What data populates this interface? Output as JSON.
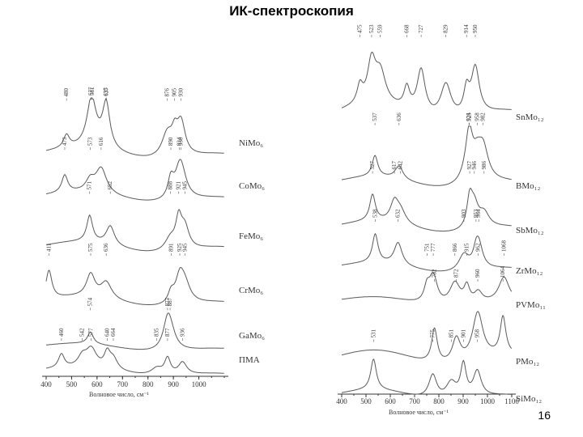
{
  "slide": {
    "title": "ИК-спектроскопия",
    "page_number": "16"
  },
  "chart_data": [
    {
      "type": "line",
      "xlabel": "Волновое число, см⁻¹",
      "xlim": [
        400,
        1100
      ],
      "x_ticks": [
        "400",
        "500",
        "600",
        "700",
        "800",
        "900",
        "1000"
      ],
      "series": [
        {
          "name": "NiMo₆",
          "peaks": [
            480,
            577,
            581,
            637,
            635,
            876,
            905,
            930
          ]
        },
        {
          "name": "CoMo₆",
          "peaks": [
            473,
            573,
            616,
            890,
            924,
            930
          ]
        },
        {
          "name": "FeMo₆",
          "peaks": [
            571,
            652,
            888,
            921,
            945
          ]
        },
        {
          "name": "CrMo₆",
          "peaks": [
            411,
            575,
            636,
            891,
            925,
            945
          ]
        },
        {
          "name": "GaMo₆",
          "peaks": [
            574,
            877,
            887
          ]
        },
        {
          "name": "ПМА",
          "peaks": [
            460,
            542,
            577,
            640,
            664,
            835,
            877,
            936
          ]
        }
      ]
    },
    {
      "type": "line",
      "xlabel": "Волновое число, см⁻¹",
      "xlim": [
        400,
        1100
      ],
      "x_ticks": [
        "400",
        "500",
        "600",
        "700",
        "800",
        "900",
        "1000",
        "1100"
      ],
      "series": [
        {
          "name": "SnMo₁₂",
          "peaks": [
            475,
            523,
            559,
            668,
            727,
            829,
            914,
            950
          ]
        },
        {
          "name": "BMo₁₂",
          "peaks": [
            537,
            636,
            924,
            925,
            958,
            982
          ]
        },
        {
          "name": "SbMo₁₂",
          "peaks": [
            527,
            617,
            642,
            927,
            946,
            986
          ]
        },
        {
          "name": "ZrMo₁₂",
          "peaks": [
            538,
            632,
            903,
            953,
            964
          ]
        },
        {
          "name": "PVMo₁₁",
          "peaks": [
            751,
            777,
            866,
            915,
            962,
            1068
          ]
        },
        {
          "name": "PMo₁₂",
          "peaks": [
            782,
            872,
            960,
            1064
          ]
        },
        {
          "name": "SiMo₁₂",
          "peaks": [
            531,
            775,
            851,
            901,
            958
          ]
        }
      ]
    }
  ]
}
